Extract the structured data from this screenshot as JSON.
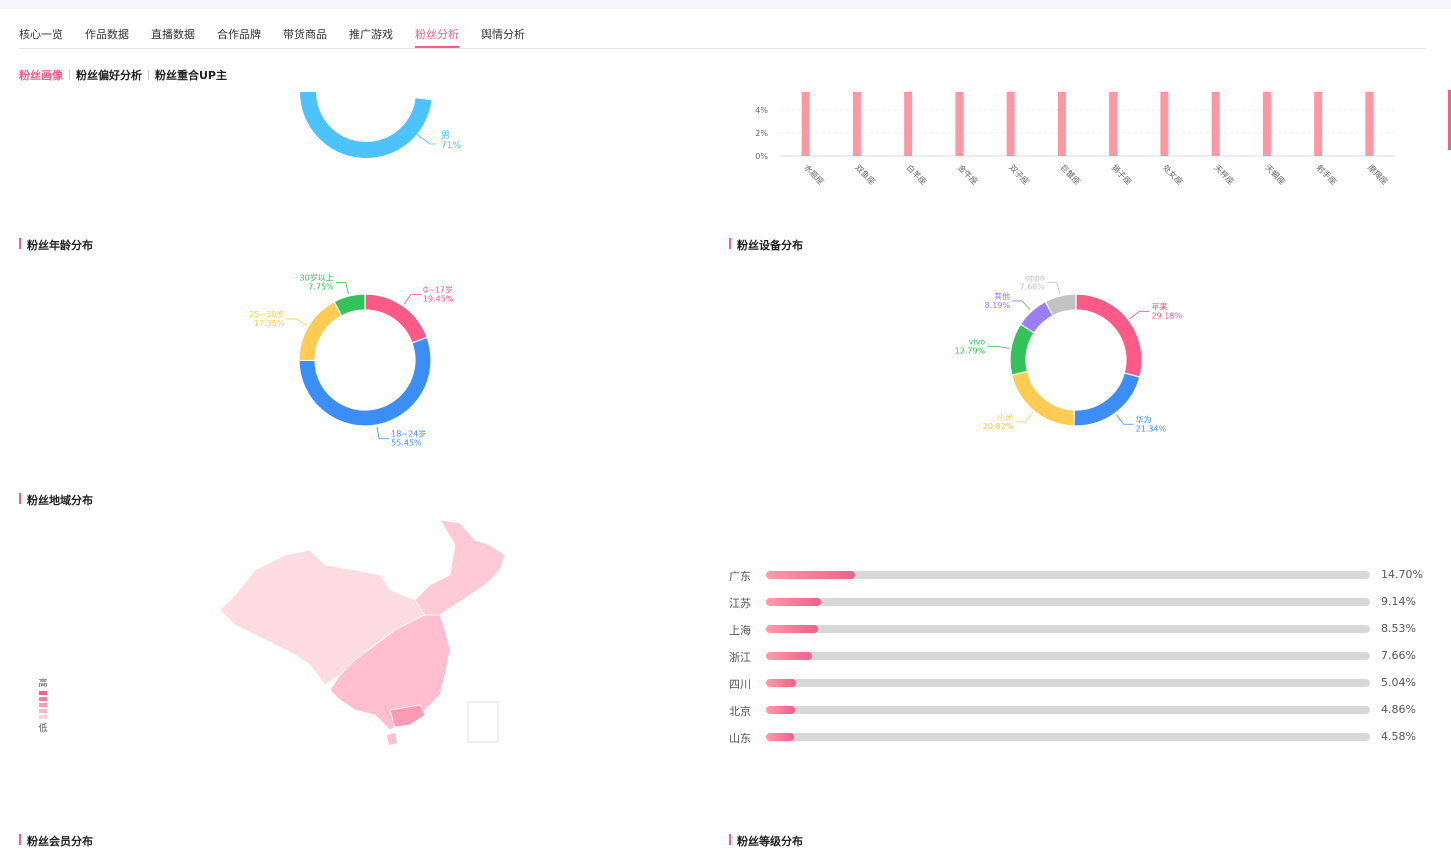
{
  "tabs": [
    "核心一览",
    "作品数据",
    "直播数据",
    "合作品牌",
    "带货商品",
    "推广游戏",
    "粉丝分析",
    "舆情分析"
  ],
  "active_tab": "粉丝分析",
  "subtabs": [
    "粉丝画像",
    "粉丝偏好分析",
    "粉丝重合UP主"
  ],
  "active_subtab": "粉丝画像",
  "sections": {
    "age": "粉丝年龄分布",
    "device": "粉丝设备分布",
    "region": "粉丝地域分布",
    "member": "粉丝会员分布",
    "level": "粉丝等级分布"
  },
  "gender_chart": {
    "label_name": "男",
    "label_value": "71%",
    "colors": {
      "male": "#4cc3ff",
      "female": "#ff5a87"
    }
  },
  "chart_data": [
    {
      "type": "bar",
      "categories": [
        "水瓶座",
        "双鱼座",
        "白羊座",
        "金牛座",
        "双子座",
        "巨蟹座",
        "狮子座",
        "处女座",
        "天秤座",
        "天蝎座",
        "射手座",
        "摩羯座"
      ],
      "y_ticks": [
        "0%",
        "2%",
        "4%"
      ],
      "color": "#ff97a2"
    },
    {
      "type": "pie",
      "labels": [
        "0~17岁",
        "18~24岁",
        "25~30岁",
        "30岁以上"
      ],
      "values": [
        19.45,
        55.45,
        17.35,
        7.75
      ],
      "value_labels": [
        "19.45%",
        "55.45%",
        "17.35%",
        "7.75%"
      ],
      "colors": [
        "#ff5a87",
        "#3a8ef6",
        "#ffcb52",
        "#34c25a"
      ]
    },
    {
      "type": "pie",
      "labels": [
        "苹果",
        "华为",
        "小米",
        "vivo",
        "其他",
        "oppo"
      ],
      "values": [
        29.18,
        21.34,
        20.82,
        12.79,
        8.19,
        7.68
      ],
      "value_labels": [
        "29.18%",
        "21.34%",
        "20.82%",
        "12.79%",
        "8.19%",
        "7.68%"
      ],
      "colors": [
        "#ff5a87",
        "#3a8ef6",
        "#ffcb52",
        "#34c25a",
        "#9b7df6",
        "#c2c2c2"
      ]
    },
    {
      "type": "bar",
      "categories": [
        "广东",
        "江苏",
        "上海",
        "浙江",
        "四川",
        "北京",
        "山东"
      ],
      "values": [
        14.7,
        9.14,
        8.53,
        7.66,
        5.04,
        4.86,
        4.58
      ],
      "value_labels": [
        "14.70%",
        "9.14%",
        "8.53%",
        "7.66%",
        "5.04%",
        "4.86%",
        "4.58%"
      ]
    }
  ],
  "map_legend": {
    "high": "高",
    "low": "低"
  }
}
